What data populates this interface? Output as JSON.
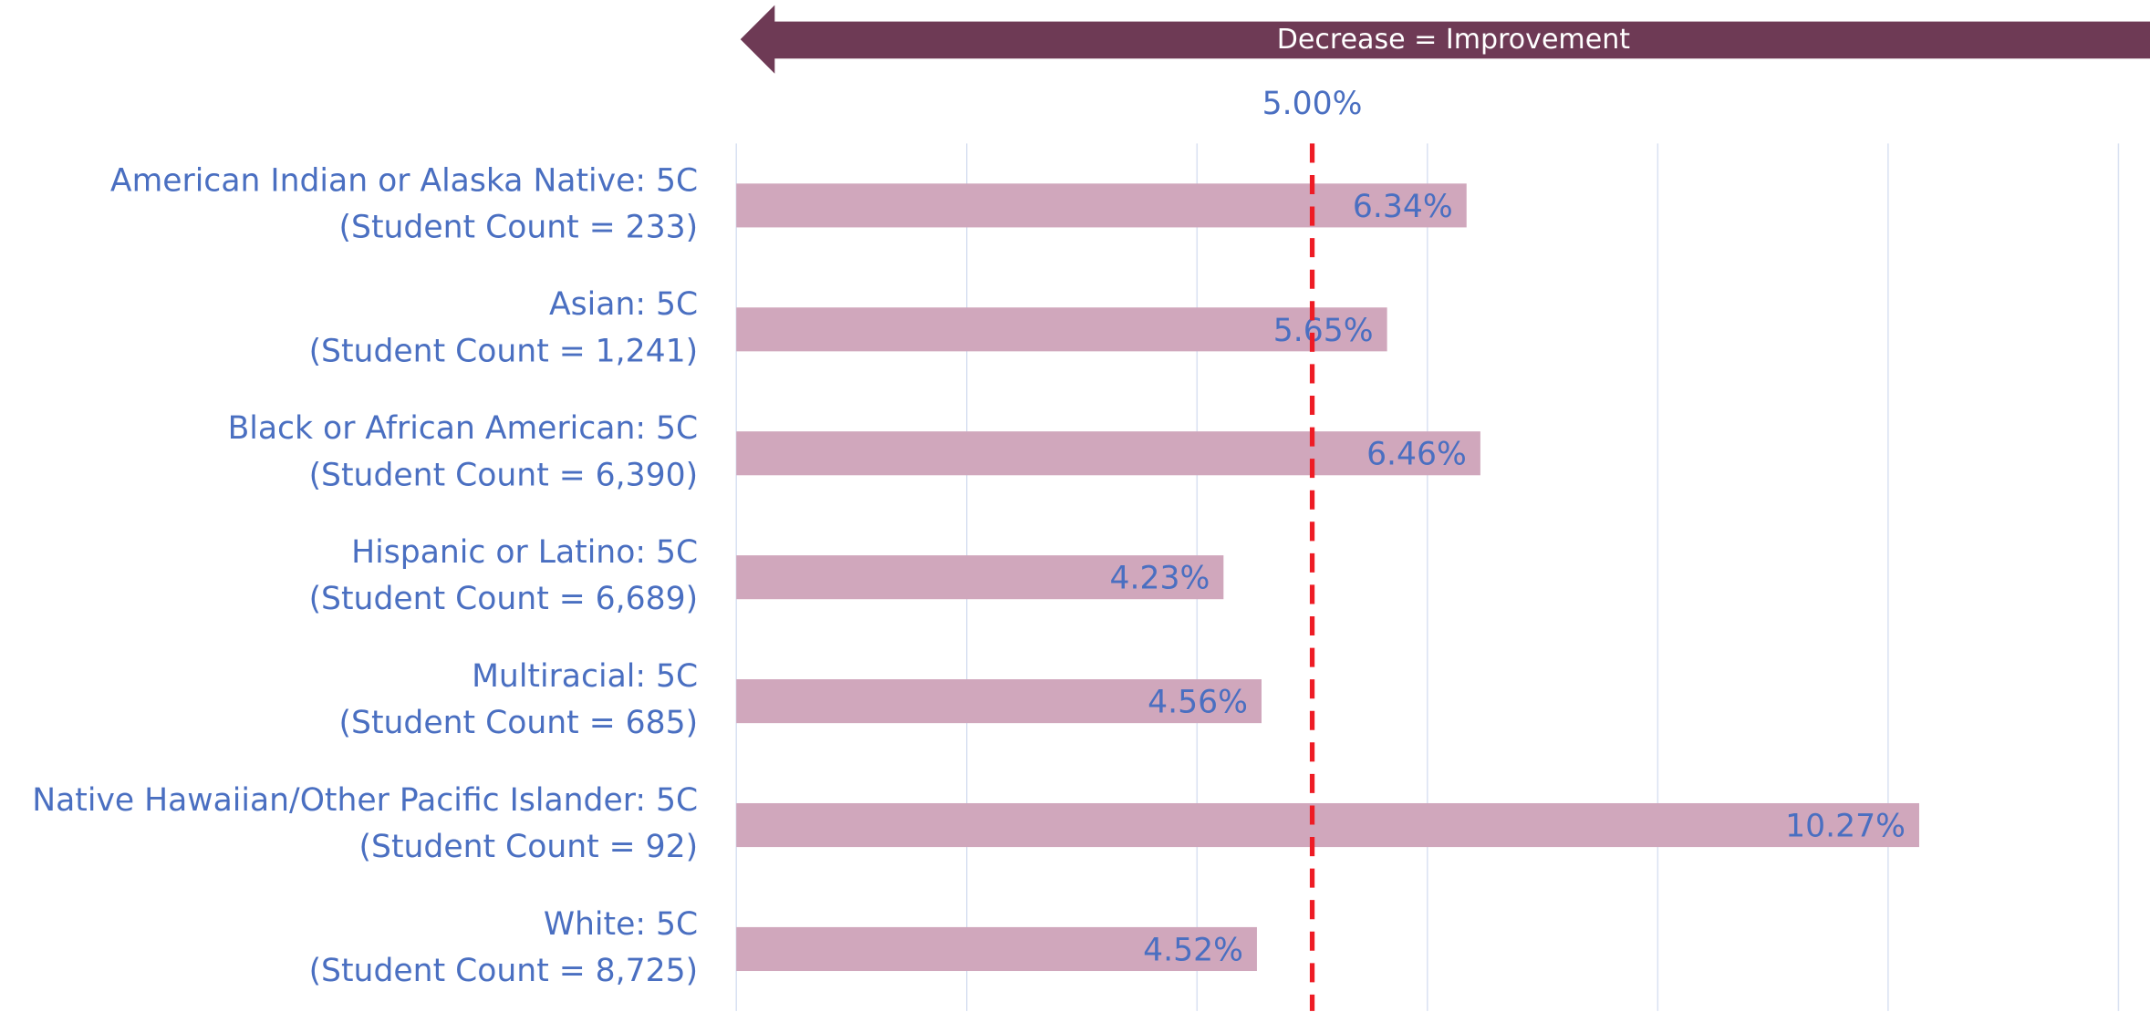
{
  "chart_data": {
    "type": "hbar",
    "banner": "Decrease = Improvement",
    "categories": [
      [
        "American Indian or Alaska Native: 5C",
        "(Student Count = 233)"
      ],
      [
        "Asian: 5C",
        "(Student Count = 1,241)"
      ],
      [
        "Black or African American: 5C",
        "(Student Count = 6,390)"
      ],
      [
        "Hispanic or Latino: 5C",
        "(Student Count = 6,689)"
      ],
      [
        "Multiracial: 5C",
        "(Student Count = 685)"
      ],
      [
        "Native Hawaiian/Other Pacific Islander: 5C",
        "(Student Count = 92)"
      ],
      [
        "White: 5C",
        "(Student Count = 8,725)"
      ]
    ],
    "values": [
      6.34,
      5.65,
      6.46,
      4.23,
      4.56,
      10.27,
      4.52
    ],
    "value_labels": [
      "6.34%",
      "5.65%",
      "6.46%",
      "4.23%",
      "4.56%",
      "10.27%",
      "4.52%"
    ],
    "color": "#d0a7bc",
    "reference_line": {
      "value": 5,
      "label": "5.00%",
      "color": "#ee1c25"
    },
    "xlim": [
      0,
      12
    ],
    "xticks": [
      0,
      2,
      4,
      6,
      8,
      10,
      12
    ],
    "grid": true
  }
}
